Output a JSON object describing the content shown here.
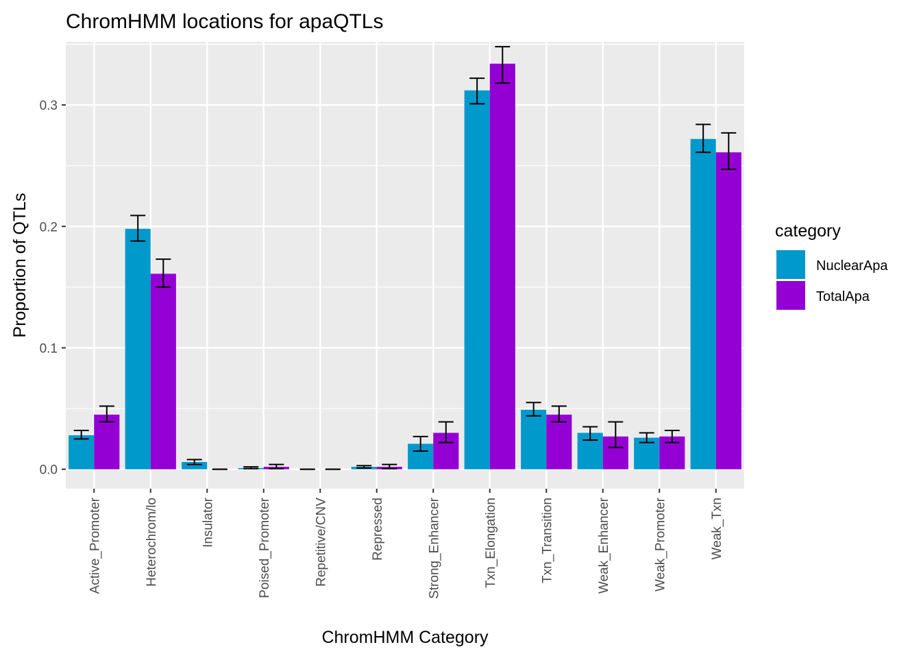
{
  "chart_data": {
    "type": "bar",
    "title": "ChromHMM locations for apaQTLs",
    "xlabel": "ChromHMM Category",
    "ylabel": "Proportion of QTLs",
    "ylim": [
      -0.016,
      0.352
    ],
    "yticks": [
      0.0,
      0.1,
      0.2,
      0.3
    ],
    "ytick_labels": [
      "0.0",
      "0.1",
      "0.2",
      "0.3"
    ],
    "grid": true,
    "legend": {
      "title": "category",
      "position": "right"
    },
    "categories": [
      "Active_Promoter",
      "Heterochrom/lo",
      "Insulator",
      "Poised_Promoter",
      "Repetitive/CNV",
      "Repressed",
      "Strong_Enhancer",
      "Txn_Elongation",
      "Txn_Transition",
      "Weak_Enhancer",
      "Weak_Promoter",
      "Weak_Txn"
    ],
    "series": [
      {
        "name": "NuclearApa",
        "color": "#0099CC",
        "values": [
          0.028,
          0.198,
          0.006,
          0.001,
          0.0,
          0.002,
          0.021,
          0.312,
          0.049,
          0.03,
          0.026,
          0.272
        ],
        "err_low": [
          0.025,
          0.188,
          0.004,
          0.0005,
          0.0,
          0.001,
          0.015,
          0.301,
          0.044,
          0.024,
          0.022,
          0.261
        ],
        "err_high": [
          0.032,
          0.209,
          0.008,
          0.002,
          0.0,
          0.003,
          0.027,
          0.322,
          0.055,
          0.035,
          0.03,
          0.284
        ]
      },
      {
        "name": "TotalApa",
        "color": "#9400D3",
        "values": [
          0.045,
          0.161,
          0.0,
          0.002,
          0.0,
          0.002,
          0.03,
          0.334,
          0.045,
          0.027,
          0.027,
          0.261
        ],
        "err_low": [
          0.039,
          0.15,
          0.0,
          0.0005,
          0.0,
          0.0005,
          0.022,
          0.318,
          0.039,
          0.018,
          0.022,
          0.247
        ],
        "err_high": [
          0.052,
          0.173,
          0.0,
          0.004,
          0.0,
          0.004,
          0.039,
          0.348,
          0.052,
          0.039,
          0.032,
          0.277
        ]
      }
    ]
  }
}
